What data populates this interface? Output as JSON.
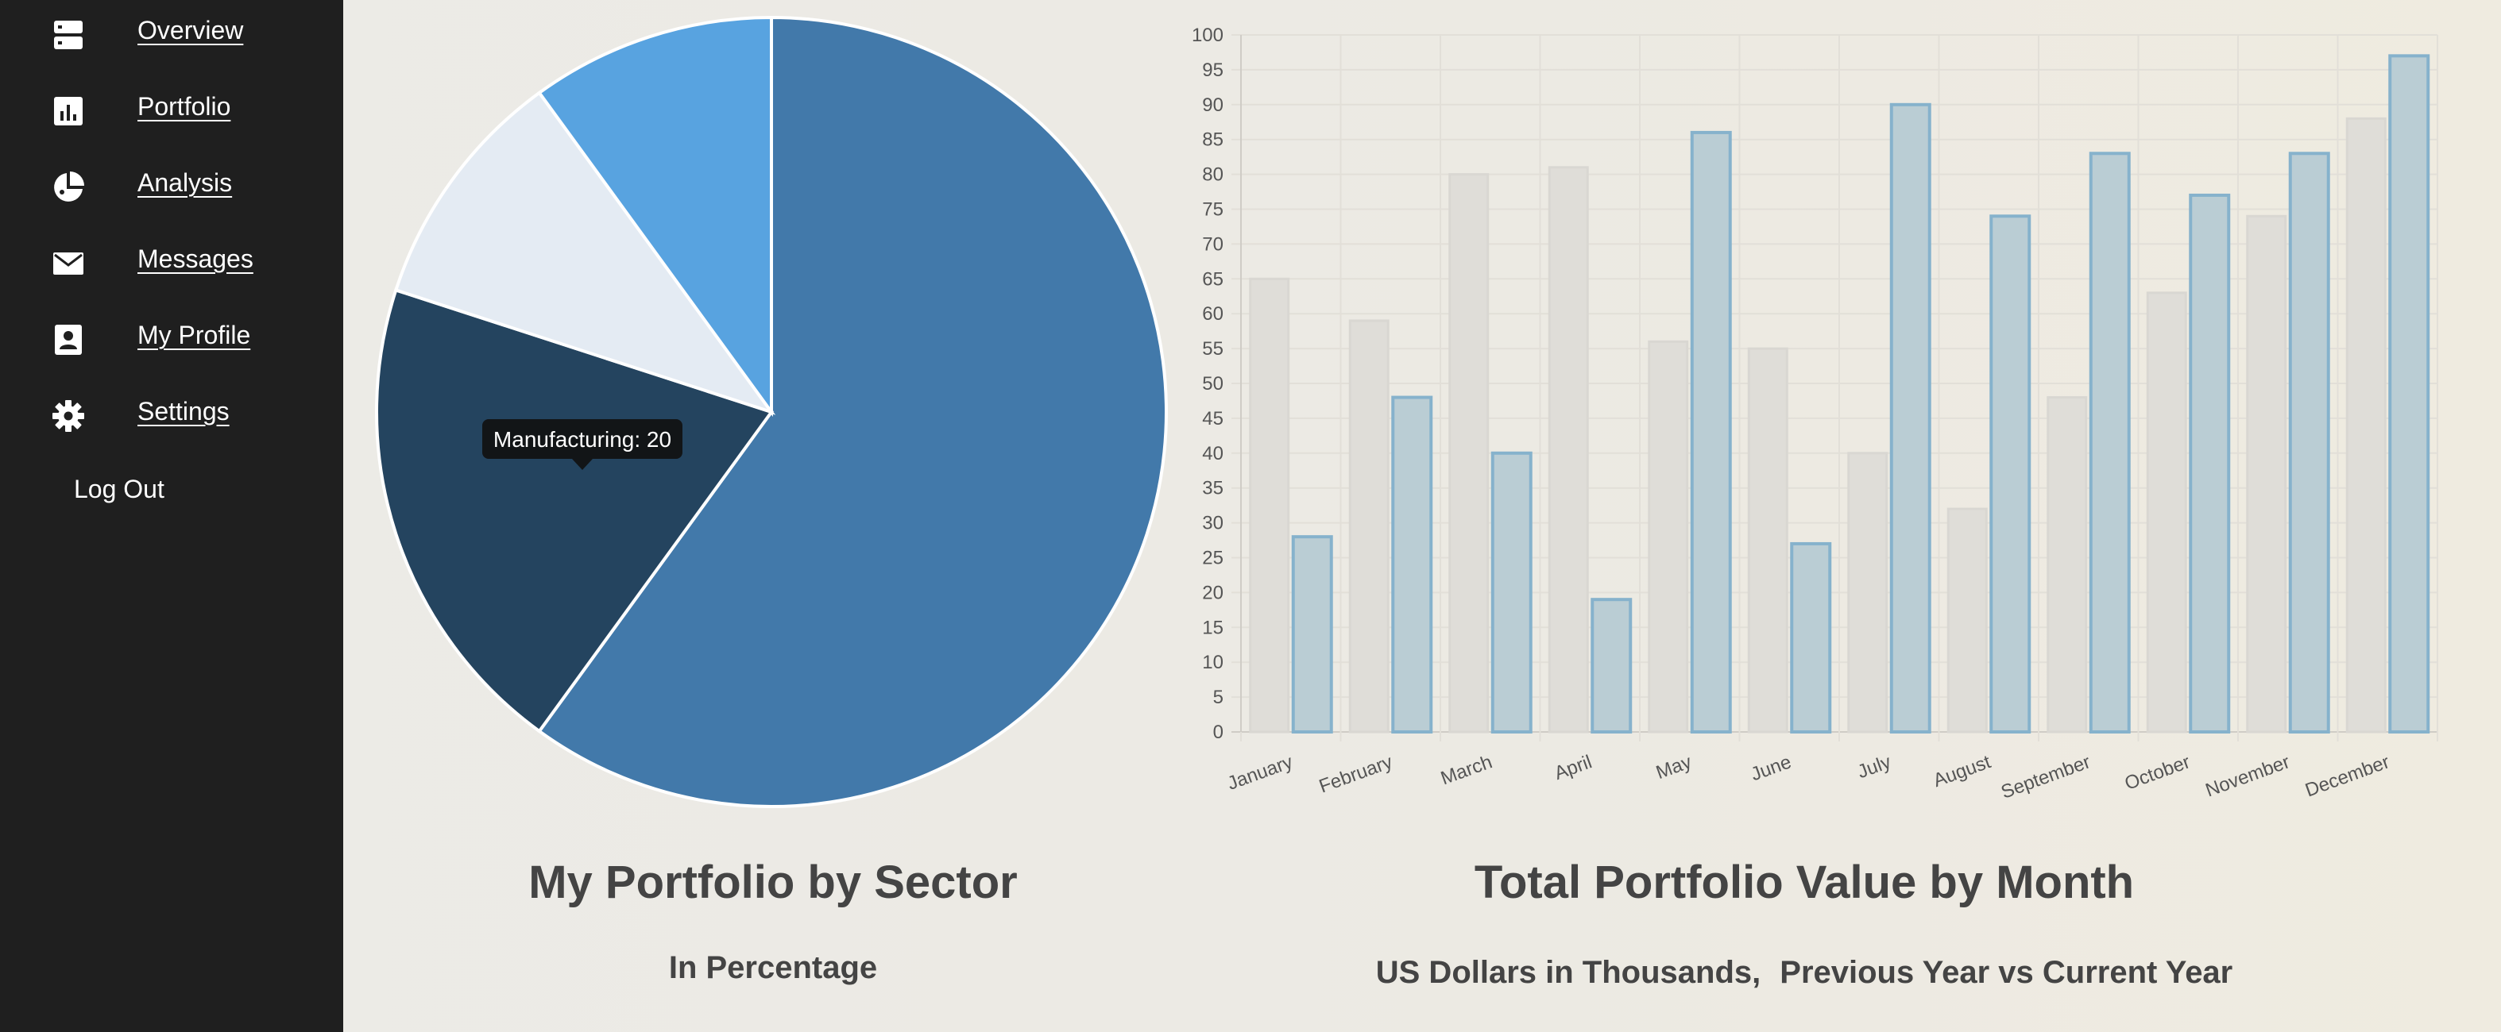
{
  "nav": {
    "items": [
      {
        "label": "Overview",
        "icon": "server-icon"
      },
      {
        "label": "Portfolio",
        "icon": "bar-chart-icon"
      },
      {
        "label": "Analysis",
        "icon": "pie-chart-icon"
      },
      {
        "label": "Messages",
        "icon": "envelope-icon"
      },
      {
        "label": "My Profile",
        "icon": "profile-card-icon"
      },
      {
        "label": "Settings",
        "icon": "gear-icon"
      }
    ],
    "logout": "Log Out"
  },
  "pie_panel": {
    "title": "My Portfolio by Sector",
    "subtitle": "In Percentage",
    "tooltip": "Manufacturing: 20"
  },
  "bar_panel": {
    "title": "Total Portfolio Value by Month",
    "subtitle_part1": "US Dollars in Thousands,",
    "subtitle_part2": "Previous Year vs Current Year"
  },
  "colors": {
    "sidebar_bg": "#1f1f1f",
    "pie_main": "#4279aa",
    "pie_dark": "#24445f",
    "pie_light": "#e4ebf3",
    "pie_sky": "#58a3e0",
    "bar_prev_fill": "#dfddd8",
    "bar_prev_stroke": "#d9d7d2",
    "bar_curr_fill": "#bacdd4",
    "bar_curr_stroke": "#86b2cc"
  },
  "chart_data": [
    {
      "type": "pie",
      "title": "My Portfolio by Sector",
      "subtitle": "In Percentage",
      "slices": [
        {
          "label": "",
          "value": 60,
          "color": "#4279aa"
        },
        {
          "label": "Manufacturing",
          "value": 20,
          "color": "#24445f"
        },
        {
          "label": "",
          "value": 10,
          "color": "#e4ebf3"
        },
        {
          "label": "",
          "value": 10,
          "color": "#58a3e0"
        }
      ],
      "tooltip": {
        "label": "Manufacturing",
        "value": 20
      }
    },
    {
      "type": "bar",
      "title": "Total Portfolio Value by Month",
      "subtitle": "US Dollars in Thousands, Previous Year vs Current Year",
      "categories": [
        "January",
        "February",
        "March",
        "April",
        "May",
        "June",
        "July",
        "August",
        "September",
        "October",
        "November",
        "December"
      ],
      "series": [
        {
          "name": "Previous Year",
          "values": [
            65,
            59,
            80,
            81,
            56,
            55,
            40,
            32,
            48,
            63,
            74,
            88
          ]
        },
        {
          "name": "Current Year",
          "values": [
            28,
            48,
            40,
            19,
            86,
            27,
            90,
            74,
            83,
            77,
            83,
            97
          ]
        }
      ],
      "ylim": [
        0,
        100
      ],
      "yticks": [
        0,
        5,
        10,
        15,
        20,
        25,
        30,
        35,
        40,
        45,
        50,
        55,
        60,
        65,
        70,
        75,
        80,
        85,
        90,
        95,
        100
      ],
      "grid": true,
      "legend": "none"
    }
  ]
}
